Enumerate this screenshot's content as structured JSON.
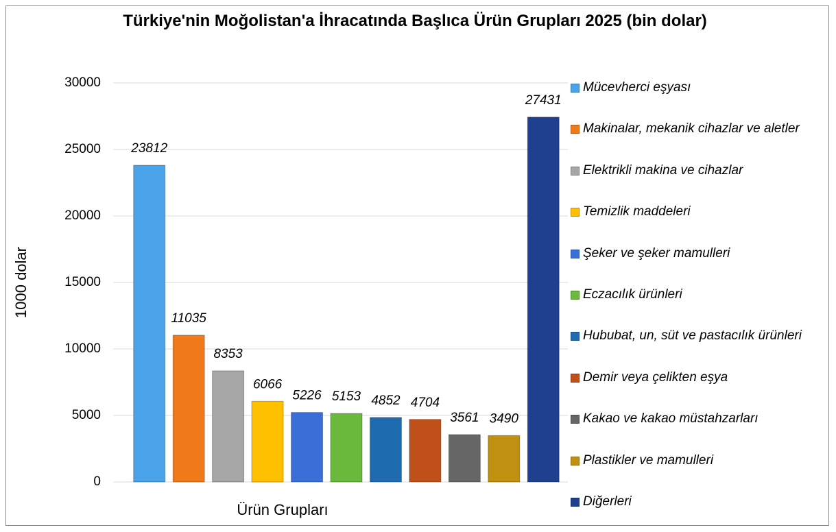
{
  "chart_data": {
    "type": "bar",
    "title": "Türkiye'nin Moğolistan'a İhracatında Başlıca Ürün Grupları 2025 (bin dolar)",
    "xlabel": "Ürün Grupları",
    "ylabel": "1000 dolar",
    "categories": [
      "Mücevherci eşyası",
      "Makinalar, mekanik cihazlar ve aletler",
      "Elektrikli makina ve cihazlar",
      "Temizlik maddeleri",
      "Şeker ve şeker mamulleri",
      "Eczacılık ürünleri",
      "Hububat, un, süt ve pastacılık ürünleri",
      "Demir veya çelikten eşya",
      "Kakao ve kakao müstahzarları",
      "Plastikler ve mamulleri",
      "Diğerleri"
    ],
    "values": [
      23812,
      11035,
      8353,
      6066,
      5226,
      5153,
      4852,
      4704,
      3561,
      3490,
      27431
    ],
    "colors": [
      "#4aa3e8",
      "#f07a1a",
      "#a6a6a6",
      "#ffc000",
      "#3a6fd8",
      "#6ab83c",
      "#1f6bb0",
      "#c0501a",
      "#666666",
      "#c09010",
      "#1f3f8f"
    ],
    "ylim": [
      0,
      30000
    ],
    "yticks": [
      0,
      5000,
      10000,
      15000,
      20000,
      25000,
      30000
    ],
    "grid": true,
    "legend": "right"
  }
}
